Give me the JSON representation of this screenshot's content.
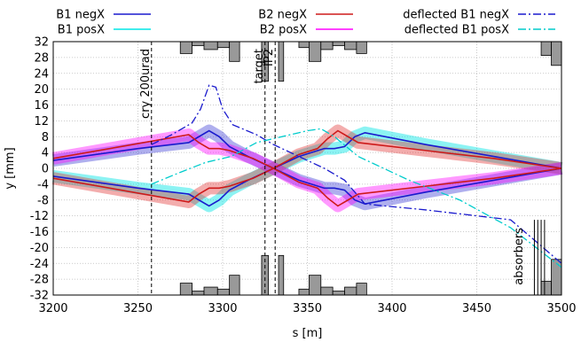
{
  "chart_data": {
    "type": "line",
    "xlabel": "s [m]",
    "ylabel": "y [mm]",
    "xlim": [
      3200,
      3500
    ],
    "ylim": [
      -32,
      32
    ],
    "xticks": [
      3200,
      3250,
      3300,
      3350,
      3400,
      3450,
      3500
    ],
    "yticks": [
      32,
      28,
      24,
      20,
      16,
      12,
      8,
      4,
      0,
      -4,
      -8,
      -12,
      -16,
      -20,
      -24,
      -28,
      -32
    ],
    "grid": true,
    "legend_position": "top",
    "series": [
      {
        "name": "B1 negX",
        "color": "#1a1acd",
        "style": "solid",
        "band": true,
        "x": [
          3200,
          3250,
          3280,
          3286,
          3292,
          3298,
          3304,
          3315,
          3330,
          3345,
          3360,
          3366,
          3372,
          3378,
          3384,
          3420,
          3460,
          3500
        ],
        "y": [
          2,
          5,
          6.5,
          8,
          9.5,
          8,
          5.5,
          3,
          0,
          -3,
          -5,
          -5,
          -5.5,
          -8,
          -9,
          -6,
          -3,
          0
        ]
      },
      {
        "name": "B1 posX",
        "color": "#1a1acd",
        "style": "solid",
        "band": true,
        "x": [
          3200,
          3250,
          3280,
          3286,
          3292,
          3298,
          3304,
          3315,
          3330,
          3345,
          3360,
          3366,
          3372,
          3378,
          3384,
          3420,
          3460,
          3500
        ],
        "y": [
          -2,
          -5,
          -6.5,
          -8,
          -9.5,
          -8,
          -5.5,
          -3,
          0,
          3,
          5,
          5,
          5.5,
          8,
          9,
          6,
          3,
          0
        ]
      },
      {
        "name": "B2 negX",
        "color": "#cd1a1a",
        "style": "solid",
        "band": true,
        "x": [
          3200,
          3240,
          3280,
          3286,
          3292,
          3298,
          3304,
          3318,
          3330,
          3345,
          3356,
          3362,
          3368,
          3374,
          3380,
          3420,
          3460,
          3500
        ],
        "y": [
          -2.5,
          -5.5,
          -8.5,
          -6.5,
          -5,
          -5,
          -4.5,
          -2.5,
          0,
          3.5,
          5,
          7.5,
          9.5,
          8,
          6.5,
          4.5,
          2.5,
          0
        ]
      },
      {
        "name": "B2 posX",
        "color": "#cd1a1a",
        "style": "solid",
        "band": true,
        "x": [
          3200,
          3240,
          3280,
          3286,
          3292,
          3298,
          3304,
          3318,
          3330,
          3345,
          3356,
          3362,
          3368,
          3374,
          3380,
          3420,
          3460,
          3500
        ],
        "y": [
          2.5,
          5.5,
          8.5,
          6.5,
          5,
          5,
          4.5,
          2.5,
          0,
          -3.5,
          -5,
          -7.5,
          -9.5,
          -8,
          -6.5,
          -4.5,
          -2.5,
          0
        ]
      },
      {
        "name": "deflected B1 negX",
        "color": "#1a1acd",
        "style": "dashdot",
        "band": false,
        "x": [
          3258,
          3270,
          3282,
          3287,
          3292,
          3296,
          3300,
          3306,
          3320,
          3330,
          3345,
          3360,
          3372,
          3384,
          3420,
          3470,
          3500
        ],
        "y": [
          6,
          8.5,
          11.5,
          15,
          21,
          20.5,
          15,
          11,
          8.5,
          6,
          3,
          0,
          -3,
          -9,
          -10.5,
          -13,
          -24
        ]
      },
      {
        "name": "deflected B1 posX",
        "color": "#00cccc",
        "style": "dashdot",
        "band": false,
        "x": [
          3258,
          3275,
          3290,
          3305,
          3320,
          3330,
          3340,
          3350,
          3358,
          3366,
          3380,
          3410,
          3440,
          3470,
          3500
        ],
        "y": [
          -4,
          -1,
          1.5,
          3,
          6.5,
          7.5,
          8.5,
          9.5,
          10,
          8,
          3,
          -3,
          -8,
          -15,
          -25
        ]
      }
    ],
    "bands": [
      {
        "color": "#1a1acd",
        "opacity": 0.35
      },
      {
        "color": "#00e5e5",
        "opacity": 0.45
      },
      {
        "color": "#e23333",
        "opacity": 0.4
      },
      {
        "color": "#ff00ff",
        "opacity": 0.4
      }
    ],
    "legend": [
      {
        "label": "B1 negX",
        "color": "#1a1acd",
        "style": "solid"
      },
      {
        "label": "B1 posX",
        "color": "#00e5e5",
        "style": "solid"
      },
      {
        "label": "B2 negX",
        "color": "#cd1a1a",
        "style": "solid"
      },
      {
        "label": "B2 posX",
        "color": "#ff00ff",
        "style": "solid"
      },
      {
        "label": "deflected B1 negX",
        "color": "#1a1acd",
        "style": "dashdot"
      },
      {
        "label": "deflected B1 posX",
        "color": "#00cccc",
        "style": "dashdot"
      }
    ],
    "markers": [
      {
        "label": "cry 200urad",
        "x": 3258
      },
      {
        "label": "target",
        "x": 3325
      },
      {
        "label": "IP2",
        "x": 3331
      }
    ],
    "absorbers_label": "absorbers",
    "absorbers_x": [
      3484,
      3486,
      3488,
      3490
    ],
    "aperture_top": [
      {
        "x0": 3275,
        "x1": 3282,
        "y": 29
      },
      {
        "x0": 3282,
        "x1": 3289,
        "y": 31
      },
      {
        "x0": 3289,
        "x1": 3297,
        "y": 30
      },
      {
        "x0": 3297,
        "x1": 3304,
        "y": 30.5
      },
      {
        "x0": 3304,
        "x1": 3310,
        "y": 27
      },
      {
        "x0": 3323,
        "x1": 3327,
        "y": 22
      },
      {
        "x0": 3333,
        "x1": 3336,
        "y": 22
      },
      {
        "x0": 3345,
        "x1": 3351,
        "y": 30.5
      },
      {
        "x0": 3351,
        "x1": 3358,
        "y": 27
      },
      {
        "x0": 3358,
        "x1": 3365,
        "y": 30
      },
      {
        "x0": 3365,
        "x1": 3372,
        "y": 31
      },
      {
        "x0": 3372,
        "x1": 3379,
        "y": 30
      },
      {
        "x0": 3379,
        "x1": 3385,
        "y": 29
      },
      {
        "x0": 3488,
        "x1": 3494,
        "y": 28.5
      },
      {
        "x0": 3494,
        "x1": 3500,
        "y": 26
      }
    ],
    "aperture_bottom": [
      {
        "x0": 3275,
        "x1": 3282,
        "y": -29
      },
      {
        "x0": 3282,
        "x1": 3289,
        "y": -31
      },
      {
        "x0": 3289,
        "x1": 3297,
        "y": -30
      },
      {
        "x0": 3297,
        "x1": 3304,
        "y": -30.5
      },
      {
        "x0": 3304,
        "x1": 3310,
        "y": -27
      },
      {
        "x0": 3323,
        "x1": 3327,
        "y": -22
      },
      {
        "x0": 3333,
        "x1": 3336,
        "y": -22
      },
      {
        "x0": 3345,
        "x1": 3351,
        "y": -30.5
      },
      {
        "x0": 3351,
        "x1": 3358,
        "y": -27
      },
      {
        "x0": 3358,
        "x1": 3365,
        "y": -30
      },
      {
        "x0": 3365,
        "x1": 3372,
        "y": -31
      },
      {
        "x0": 3372,
        "x1": 3379,
        "y": -30
      },
      {
        "x0": 3379,
        "x1": 3385,
        "y": -29
      },
      {
        "x0": 3488,
        "x1": 3494,
        "y": -28.5
      },
      {
        "x0": 3494,
        "x1": 3500,
        "y": -23
      }
    ]
  }
}
